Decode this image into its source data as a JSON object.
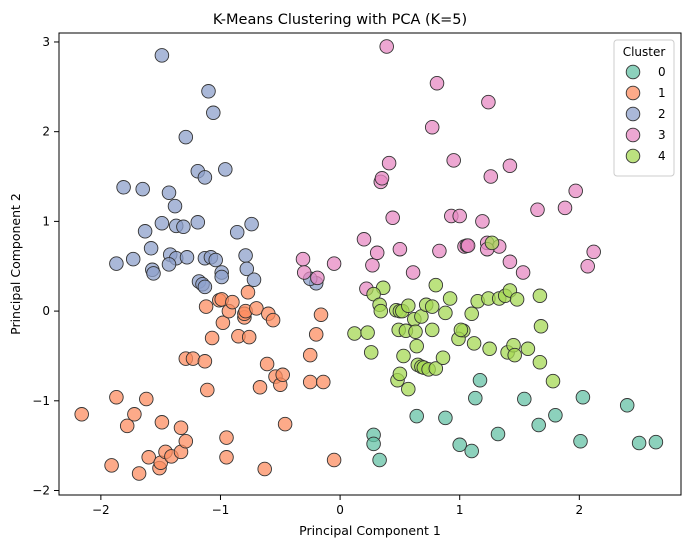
{
  "chart_data": {
    "type": "scatter",
    "title": "K-Means Clustering with PCA (K=5)",
    "xlabel": "Principal Component 1",
    "ylabel": "Principal Component 2",
    "xlim": [
      -2.35,
      2.85
    ],
    "ylim": [
      -2.05,
      3.1
    ],
    "xticks": [
      -2,
      -1,
      0,
      1,
      2
    ],
    "yticks": [
      -2,
      -1,
      0,
      1,
      2,
      3
    ],
    "grid": false,
    "legend": {
      "title": "Cluster",
      "placement": "top-right"
    },
    "series": [
      {
        "name": "0",
        "color": "#66c2a5",
        "points": [
          [
            0.28,
            -1.38
          ],
          [
            0.28,
            -1.48
          ],
          [
            0.33,
            -1.66
          ],
          [
            0.64,
            -1.17
          ],
          [
            0.88,
            -1.19
          ],
          [
            1.0,
            -1.49
          ],
          [
            1.1,
            -1.56
          ],
          [
            1.32,
            -1.37
          ],
          [
            1.13,
            -0.97
          ],
          [
            1.17,
            -0.77
          ],
          [
            1.54,
            -0.98
          ],
          [
            1.66,
            -1.27
          ],
          [
            1.8,
            -1.16
          ],
          [
            2.01,
            -1.45
          ],
          [
            2.03,
            -0.96
          ],
          [
            2.4,
            -1.05
          ],
          [
            2.5,
            -1.47
          ],
          [
            2.64,
            -1.46
          ]
        ]
      },
      {
        "name": "1",
        "color": "#fc8d62",
        "points": [
          [
            -2.16,
            -1.15
          ],
          [
            -1.91,
            -1.72
          ],
          [
            -1.87,
            -0.96
          ],
          [
            -1.78,
            -1.28
          ],
          [
            -1.72,
            -1.15
          ],
          [
            -1.68,
            -1.81
          ],
          [
            -1.62,
            -0.98
          ],
          [
            -1.6,
            -1.63
          ],
          [
            -1.51,
            -1.75
          ],
          [
            -1.5,
            -1.69
          ],
          [
            -1.49,
            -1.24
          ],
          [
            -1.46,
            -1.57
          ],
          [
            -1.41,
            -1.62
          ],
          [
            -1.33,
            -1.57
          ],
          [
            -1.33,
            -1.3
          ],
          [
            -1.29,
            -1.45
          ],
          [
            -1.29,
            -0.53
          ],
          [
            -1.23,
            -0.53
          ],
          [
            -1.13,
            -0.56
          ],
          [
            -1.11,
            -0.88
          ],
          [
            -1.12,
            0.05
          ],
          [
            -1.07,
            -0.3
          ],
          [
            -1.01,
            0.12
          ],
          [
            -0.99,
            0.13
          ],
          [
            -0.98,
            -0.13
          ],
          [
            -0.95,
            -1.41
          ],
          [
            -0.95,
            -1.63
          ],
          [
            -0.93,
            0.0
          ],
          [
            -0.9,
            0.1
          ],
          [
            -0.85,
            -0.28
          ],
          [
            -0.8,
            -0.07
          ],
          [
            -0.8,
            -0.03
          ],
          [
            -0.79,
            0.0
          ],
          [
            -0.77,
            0.21
          ],
          [
            -0.76,
            -0.29
          ],
          [
            -0.7,
            0.03
          ],
          [
            -0.67,
            -0.85
          ],
          [
            -0.63,
            -1.76
          ],
          [
            -0.61,
            -0.59
          ],
          [
            -0.6,
            -0.03
          ],
          [
            -0.56,
            -0.1
          ],
          [
            -0.54,
            -0.73
          ],
          [
            -0.5,
            -0.82
          ],
          [
            -0.48,
            -0.71
          ],
          [
            -0.46,
            -1.26
          ],
          [
            -0.25,
            -0.49
          ],
          [
            -0.25,
            -0.79
          ],
          [
            -0.2,
            -0.26
          ],
          [
            -0.16,
            -0.04
          ],
          [
            -0.14,
            -0.79
          ],
          [
            -0.05,
            -1.66
          ]
        ]
      },
      {
        "name": "2",
        "color": "#8da0cb",
        "points": [
          [
            -1.49,
            2.85
          ],
          [
            -1.1,
            2.45
          ],
          [
            -1.06,
            2.21
          ],
          [
            -1.29,
            1.94
          ],
          [
            -0.96,
            1.58
          ],
          [
            -1.19,
            1.56
          ],
          [
            -1.13,
            1.49
          ],
          [
            -1.81,
            1.38
          ],
          [
            -1.65,
            1.36
          ],
          [
            -1.43,
            1.32
          ],
          [
            -1.38,
            1.17
          ],
          [
            -1.63,
            0.89
          ],
          [
            -1.49,
            0.98
          ],
          [
            -1.37,
            0.95
          ],
          [
            -1.19,
            0.99
          ],
          [
            -0.74,
            0.97
          ],
          [
            -0.86,
            0.88
          ],
          [
            -1.31,
            0.94
          ],
          [
            -1.58,
            0.7
          ],
          [
            -1.42,
            0.63
          ],
          [
            -1.37,
            0.59
          ],
          [
            -1.28,
            0.6
          ],
          [
            -1.13,
            0.59
          ],
          [
            -1.08,
            0.6
          ],
          [
            -0.79,
            0.62
          ],
          [
            -1.73,
            0.58
          ],
          [
            -1.87,
            0.53
          ],
          [
            -1.43,
            0.52
          ],
          [
            -1.04,
            0.57
          ],
          [
            -0.99,
            0.43
          ],
          [
            -0.78,
            0.47
          ],
          [
            -1.57,
            0.46
          ],
          [
            -1.56,
            0.42
          ],
          [
            -1.18,
            0.33
          ],
          [
            -1.15,
            0.3
          ],
          [
            -1.13,
            0.27
          ],
          [
            -0.99,
            0.38
          ],
          [
            -0.72,
            0.35
          ],
          [
            -0.2,
            0.31
          ],
          [
            -0.25,
            0.36
          ]
        ]
      },
      {
        "name": "3",
        "color": "#e78ac3",
        "points": [
          [
            0.39,
            2.95
          ],
          [
            0.81,
            2.54
          ],
          [
            1.24,
            2.33
          ],
          [
            0.77,
            2.05
          ],
          [
            0.41,
            1.65
          ],
          [
            0.95,
            1.68
          ],
          [
            1.26,
            1.5
          ],
          [
            1.42,
            1.62
          ],
          [
            0.34,
            1.44
          ],
          [
            0.35,
            1.48
          ],
          [
            0.44,
            1.04
          ],
          [
            0.93,
            1.06
          ],
          [
            1.0,
            1.06
          ],
          [
            1.65,
            1.13
          ],
          [
            1.88,
            1.15
          ],
          [
            1.97,
            1.34
          ],
          [
            0.2,
            0.8
          ],
          [
            0.27,
            0.51
          ],
          [
            0.31,
            0.65
          ],
          [
            0.5,
            0.69
          ],
          [
            0.61,
            0.43
          ],
          [
            0.83,
            0.67
          ],
          [
            1.04,
            0.72
          ],
          [
            1.06,
            0.73
          ],
          [
            1.07,
            0.73
          ],
          [
            1.19,
            1.0
          ],
          [
            1.23,
            0.76
          ],
          [
            1.33,
            0.72
          ],
          [
            1.23,
            0.69
          ],
          [
            1.42,
            0.55
          ],
          [
            1.53,
            0.43
          ],
          [
            2.07,
            0.5
          ],
          [
            2.12,
            0.66
          ],
          [
            -0.05,
            0.53
          ],
          [
            -0.31,
            0.58
          ],
          [
            -0.3,
            0.43
          ],
          [
            -0.19,
            0.37
          ],
          [
            0.22,
            0.25
          ]
        ]
      },
      {
        "name": "4",
        "color": "#a6d854",
        "points": [
          [
            0.36,
            0.26
          ],
          [
            0.28,
            0.19
          ],
          [
            0.33,
            0.07
          ],
          [
            0.34,
            0.0
          ],
          [
            0.47,
            0.01
          ],
          [
            0.5,
            0.0
          ],
          [
            0.52,
            0.0
          ],
          [
            0.57,
            0.06
          ],
          [
            0.62,
            -0.09
          ],
          [
            0.68,
            -0.06
          ],
          [
            0.72,
            0.07
          ],
          [
            0.77,
            0.05
          ],
          [
            0.8,
            0.29
          ],
          [
            0.88,
            -0.02
          ],
          [
            0.92,
            0.14
          ],
          [
            1.03,
            -0.22
          ],
          [
            1.1,
            -0.03
          ],
          [
            1.15,
            0.11
          ],
          [
            1.24,
            0.14
          ],
          [
            1.27,
            0.76
          ],
          [
            1.33,
            0.14
          ],
          [
            1.38,
            0.17
          ],
          [
            1.42,
            0.23
          ],
          [
            1.48,
            0.13
          ],
          [
            1.67,
            0.17
          ],
          [
            1.68,
            -0.17
          ],
          [
            0.12,
            -0.25
          ],
          [
            0.23,
            -0.24
          ],
          [
            0.26,
            -0.46
          ],
          [
            0.49,
            -0.21
          ],
          [
            0.53,
            -0.5
          ],
          [
            0.55,
            -0.22
          ],
          [
            0.57,
            -0.87
          ],
          [
            0.63,
            -0.23
          ],
          [
            0.64,
            -0.39
          ],
          [
            0.65,
            -0.6
          ],
          [
            0.68,
            -0.62
          ],
          [
            0.7,
            -0.63
          ],
          [
            0.74,
            -0.65
          ],
          [
            0.77,
            -0.21
          ],
          [
            0.8,
            -0.64
          ],
          [
            0.86,
            -0.52
          ],
          [
            0.48,
            -0.77
          ],
          [
            0.5,
            -0.7
          ],
          [
            0.99,
            -0.31
          ],
          [
            1.01,
            -0.21
          ],
          [
            1.12,
            -0.36
          ],
          [
            1.25,
            -0.42
          ],
          [
            1.4,
            -0.46
          ],
          [
            1.45,
            -0.38
          ],
          [
            1.46,
            -0.49
          ],
          [
            1.57,
            -0.42
          ],
          [
            1.67,
            -0.57
          ],
          [
            1.78,
            -0.78
          ]
        ]
      }
    ]
  }
}
